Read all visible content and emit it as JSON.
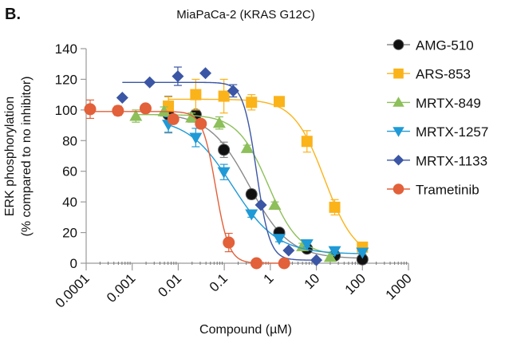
{
  "panel_label": "B.",
  "chart_data": {
    "type": "scatter",
    "title": "MiaPaCa-2 (KRAS G12C)",
    "xlabel": "Compound (µM)",
    "ylabel_lines": [
      "ERK phosphorylation",
      "(% compared to no inhibitor)"
    ],
    "xscale": "log",
    "xlim": [
      0.0001,
      1000
    ],
    "ylim": [
      0,
      140
    ],
    "xticks": [
      0.0001,
      0.001,
      0.01,
      0.1,
      1,
      10,
      100,
      1000
    ],
    "xtick_labels": [
      "0.0001",
      "0.001",
      "0.01",
      "0.1",
      "1",
      "10",
      "100",
      "1000"
    ],
    "yticks": [
      0,
      20,
      40,
      60,
      80,
      100,
      120,
      140
    ],
    "ytick_labels": [
      "0",
      "20",
      "40",
      "60",
      "80",
      "100",
      "120",
      "140"
    ],
    "grid": false,
    "legend_position": "right",
    "series": [
      {
        "name": "AMG-510",
        "marker": "circle",
        "color": "#111111",
        "line_color": "#8a8a8a",
        "x": [
          0.0061,
          0.024,
          0.098,
          0.39,
          1.56,
          6.25,
          25,
          100
        ],
        "y": [
          97,
          97,
          74,
          45,
          20,
          9.5,
          5,
          2.5
        ],
        "err": [
          12,
          3,
          5,
          3,
          2,
          2,
          2,
          1
        ],
        "fit": {
          "top": 98,
          "bottom": 3,
          "ic50": 0.35,
          "hill": 1.0
        }
      },
      {
        "name": "ARS-853",
        "marker": "square",
        "color": "#fbb31a",
        "line_color": "#fbb31a",
        "x": [
          0.0061,
          0.024,
          0.098,
          0.39,
          1.56,
          6.25,
          25,
          100
        ],
        "y": [
          102.5,
          110,
          109,
          105,
          105.5,
          79.5,
          36.5,
          10.5
        ],
        "err": [
          6,
          10,
          11,
          5,
          2,
          7,
          5,
          3
        ],
        "fit": {
          "top": 107,
          "bottom": 3,
          "ic50": 15,
          "hill": 1.3
        }
      },
      {
        "name": "MRTX-849",
        "marker": "triangle-up",
        "color": "#8dbf5a",
        "line_color": "#8dbf5a",
        "x": [
          0.0012,
          0.0049,
          0.0195,
          0.078,
          0.3125,
          1.25,
          5,
          20
        ],
        "y": [
          96,
          99,
          95,
          91.5,
          75,
          38,
          11,
          4
        ],
        "err": [
          4,
          3,
          3,
          4,
          2,
          2,
          2,
          1
        ],
        "fit": {
          "top": 97,
          "bottom": 5,
          "ic50": 0.9,
          "hill": 1.3
        }
      },
      {
        "name": "MRTX-1257",
        "marker": "triangle-down",
        "color": "#1f9ad6",
        "line_color": "#1f9ad6",
        "x": [
          0.0061,
          0.024,
          0.098,
          0.39,
          1.56,
          6.25,
          25,
          100
        ],
        "y": [
          90.5,
          82,
          59.5,
          32,
          16,
          12.5,
          8,
          7
        ],
        "err": [
          5,
          6,
          5,
          2,
          2,
          2,
          2,
          1
        ],
        "fit": {
          "top": 95,
          "bottom": 6,
          "ic50": 0.15,
          "hill": 0.9
        }
      },
      {
        "name": "MRTX-1133",
        "marker": "diamond",
        "color": "#3b56a5",
        "line_color": "#3b56a5",
        "x": [
          0.00061,
          0.0024,
          0.0098,
          0.039,
          0.156,
          0.625,
          2.5,
          10
        ],
        "y": [
          108,
          118,
          122,
          124,
          112.5,
          38,
          8.3,
          2
        ],
        "err": [
          0,
          0,
          6,
          0,
          4,
          0,
          0,
          0
        ],
        "fit": {
          "top": 118,
          "bottom": 2,
          "ic50": 0.5,
          "hill": 3
        }
      },
      {
        "name": "Trametinib",
        "marker": "circle",
        "color": "#e2603a",
        "line_color": "#e2603a",
        "x": [
          0.000122,
          0.00049,
          0.00195,
          0.0078,
          0.031,
          0.125,
          0.5,
          2
        ],
        "y": [
          100.5,
          99.5,
          101,
          94,
          91,
          13.5,
          0,
          0
        ],
        "err": [
          6,
          3,
          1,
          2,
          1,
          6,
          0,
          0
        ],
        "fit": {
          "top": 99,
          "bottom": 0,
          "ic50": 0.065,
          "hill": 3
        }
      }
    ]
  }
}
